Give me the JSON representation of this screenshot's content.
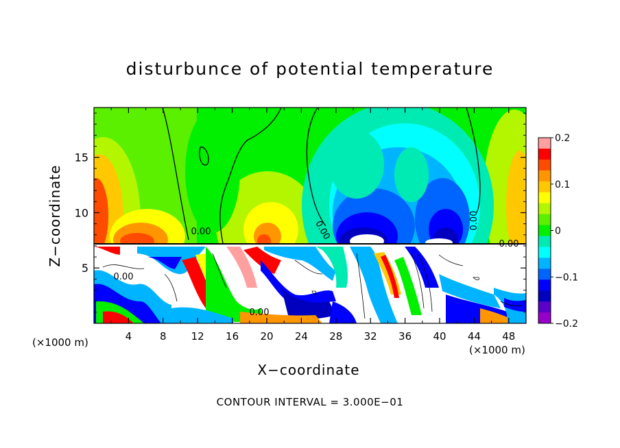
{
  "chart_data": {
    "type": "heatmap",
    "title": "disturbunce of potential temperature",
    "xlabel": "X−coordinate",
    "ylabel": "Z−coordinate",
    "x_unit": "(×1000 m)",
    "y_unit": "(×1000 m)",
    "xlim": [
      0,
      50
    ],
    "ylim": [
      0,
      19.5
    ],
    "x_ticks": [
      4,
      8,
      12,
      16,
      20,
      24,
      28,
      32,
      36,
      40,
      44,
      48
    ],
    "y_ticks": [
      5,
      10,
      15
    ],
    "colorbar": {
      "range": [
        -0.2,
        0.2
      ],
      "tick_labels": [
        "0.2",
        "0.1",
        "0",
        "−0.1",
        "−0.2"
      ],
      "tick_values": [
        0.2,
        0.1,
        0,
        -0.1,
        -0.2
      ],
      "colors": [
        "#ff9f9f",
        "#ff0000",
        "#ff4b00",
        "#ff9600",
        "#ffc800",
        "#ffff00",
        "#b4f500",
        "#5af000",
        "#00f000",
        "#00ebb4",
        "#00ffff",
        "#00b4ff",
        "#0064ff",
        "#0000ff",
        "#0000be",
        "#5a00c8",
        "#9600c8"
      ]
    },
    "contour_labels": [
      "0.00",
      "0.00",
      "0.00",
      "0.00",
      "0.00",
      "0.00"
    ],
    "contour_interval_text": "CONTOUR INTERVAL = 3.000E−01",
    "legend": "right"
  }
}
